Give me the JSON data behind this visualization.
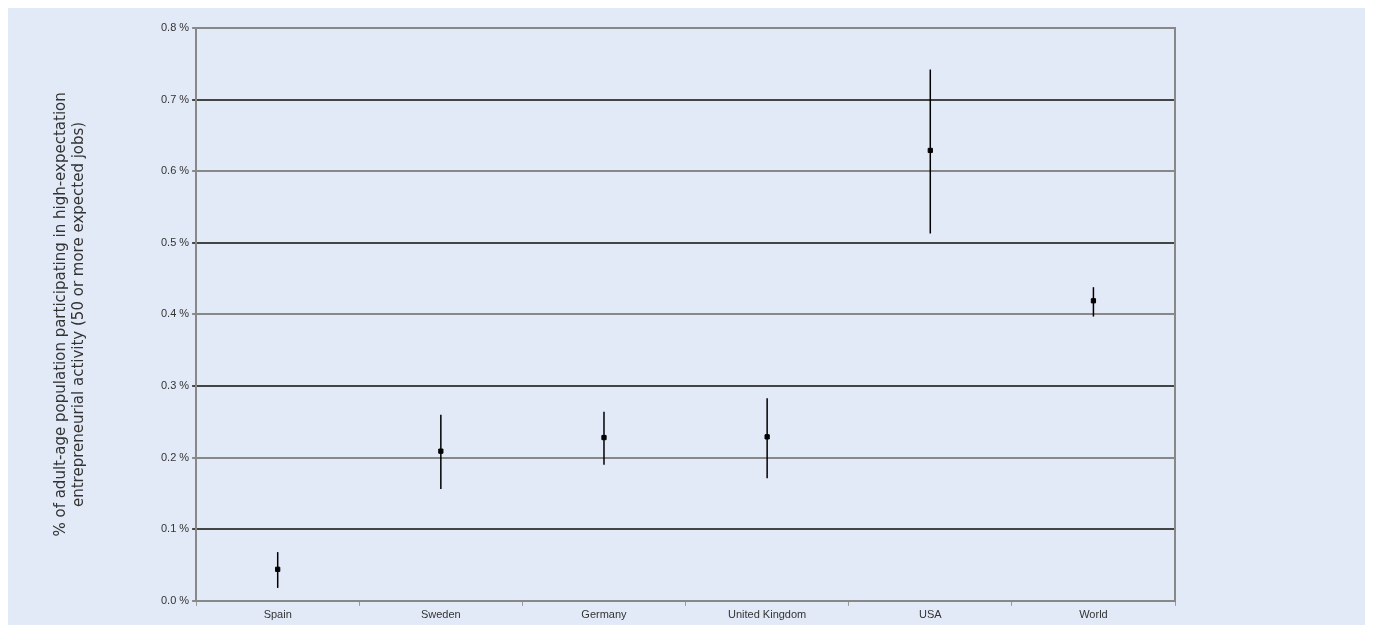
{
  "chart_data": {
    "type": "scatter",
    "ylabel": "% of adult-age population participating in high-expectation\nentrepreneurial activity (50 or more expected jobs)",
    "categories": [
      "Spain",
      "Sweden",
      "Germany",
      "United Kingdom",
      "USA",
      "World"
    ],
    "values": [
      0.044,
      0.209,
      0.228,
      0.229,
      0.629,
      0.419
    ],
    "errors": [
      [
        0.018,
        0.068
      ],
      [
        0.156,
        0.26
      ],
      [
        0.19,
        0.264
      ],
      [
        0.171,
        0.283
      ],
      [
        0.513,
        0.742
      ],
      [
        0.397,
        0.438
      ]
    ],
    "color": "#000000",
    "ylim": [
      0,
      0.8
    ],
    "yticks": [
      {
        "value": 0,
        "label": "0.0 %"
      },
      {
        "value": 0.1,
        "label": "0.1 %"
      },
      {
        "value": 0.2,
        "label": "0.2 %"
      },
      {
        "value": 0.3,
        "label": "0.3 %"
      },
      {
        "value": 0.4,
        "label": "0.4 %"
      },
      {
        "value": 0.5,
        "label": "0.5 %"
      },
      {
        "value": 0.6,
        "label": "0.6 %"
      },
      {
        "value": 0.7,
        "label": "0.7 %"
      },
      {
        "value": 0.8,
        "label": "0.8 %"
      }
    ],
    "grid": "y",
    "legend": false,
    "marker": "square"
  }
}
